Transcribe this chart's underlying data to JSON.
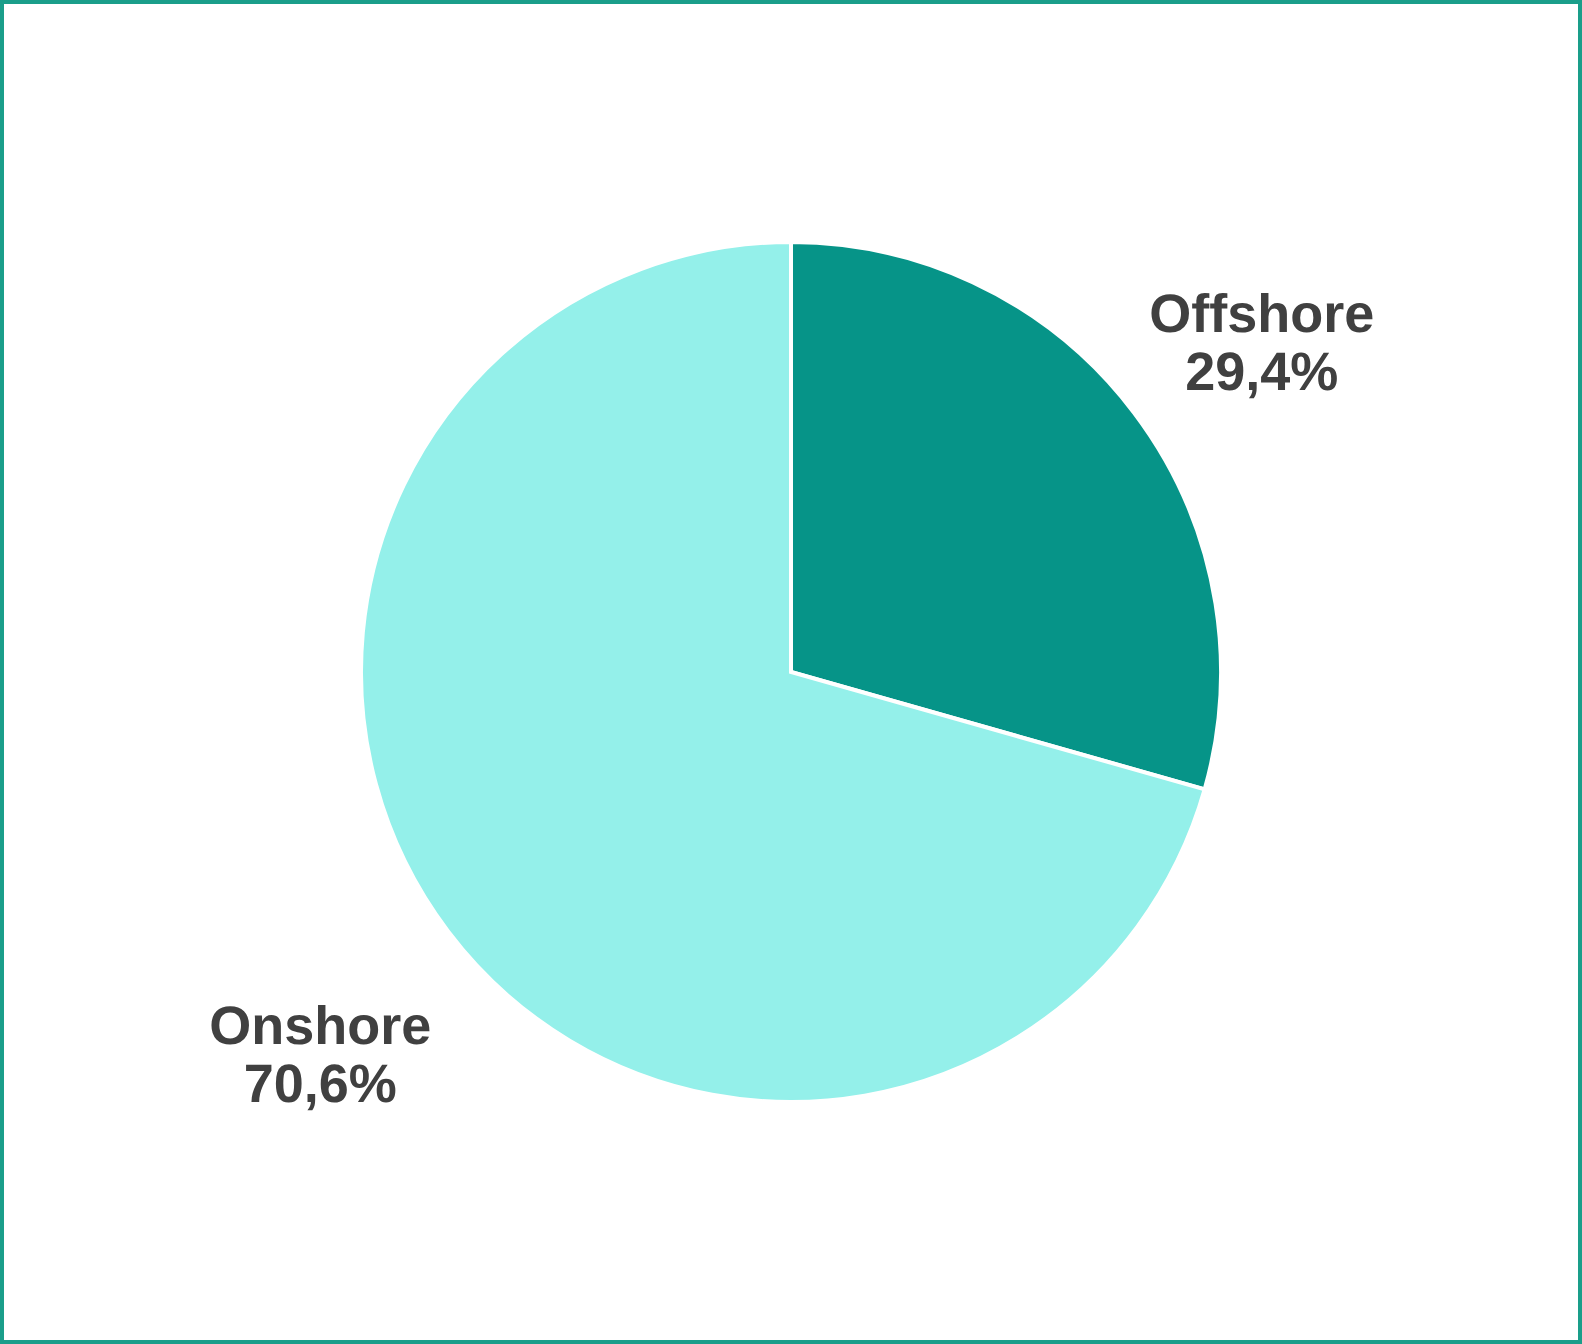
{
  "chart_data": {
    "type": "pie",
    "categories": [
      "Offshore",
      "Onshore"
    ],
    "values": [
      29.4,
      70.6
    ],
    "colors": [
      "#069488",
      "#94f0ea"
    ],
    "value_labels": [
      "29,4%",
      "70,6%"
    ]
  }
}
